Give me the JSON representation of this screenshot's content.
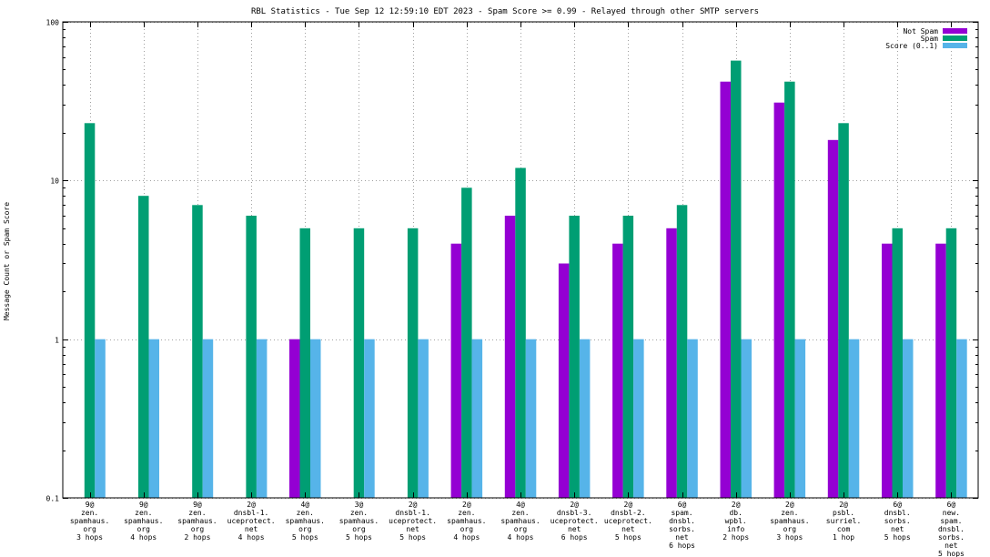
{
  "chart_data": {
    "type": "bar",
    "title": "RBL Statistics - Tue Sep 12 12:59:10 EDT 2023 - Spam Score >= 0.99 - Relayed through other SMTP servers",
    "xlabel": "",
    "ylabel": "Message Count or Spam Score",
    "y_scale": "log",
    "ylim": [
      0.1,
      100
    ],
    "y_ticks": [
      "100",
      "10",
      "1",
      "0.1"
    ],
    "y_tick_values": [
      100,
      10,
      1,
      0.1
    ],
    "grid": true,
    "legend_position": "top-right",
    "categories": [
      [
        "9@",
        "zen.",
        "spamhaus.",
        "org",
        "3 hops"
      ],
      [
        "9@",
        "zen.",
        "spamhaus.",
        "org",
        "4 hops"
      ],
      [
        "9@",
        "zen.",
        "spamhaus.",
        "org",
        "2 hops"
      ],
      [
        "2@",
        "dnsbl-1.",
        "uceprotect.",
        "net",
        "4 hops"
      ],
      [
        "4@",
        "zen.",
        "spamhaus.",
        "org",
        "5 hops"
      ],
      [
        "3@",
        "zen.",
        "spamhaus.",
        "org",
        "5 hops"
      ],
      [
        "2@",
        "dnsbl-1.",
        "uceprotect.",
        "net",
        "5 hops"
      ],
      [
        "2@",
        "zen.",
        "spamhaus.",
        "org",
        "4 hops"
      ],
      [
        "4@",
        "zen.",
        "spamhaus.",
        "org",
        "4 hops"
      ],
      [
        "2@",
        "dnsbl-3.",
        "uceprotect.",
        "net",
        "6 hops"
      ],
      [
        "2@",
        "dnsbl-2.",
        "uceprotect.",
        "net",
        "5 hops"
      ],
      [
        "6@",
        "spam.",
        "dnsbl.",
        "sorbs.",
        "net",
        "6 hops"
      ],
      [
        "2@",
        "db.",
        "wpbl.",
        "info",
        "2 hops"
      ],
      [
        "2@",
        "zen.",
        "spamhaus.",
        "org",
        "3 hops"
      ],
      [
        "2@",
        "psbl.",
        "surriel.",
        "com",
        "1 hop"
      ],
      [
        "6@",
        "dnsbl.",
        "sorbs.",
        "net",
        "5 hops"
      ],
      [
        "6@",
        "new.",
        "spam.",
        "dnsbl.",
        "sorbs.",
        "net",
        "5 hops"
      ]
    ],
    "series": [
      {
        "name": "Not Spam",
        "color": "#9400d3",
        "values": [
          0,
          0,
          0,
          0,
          1,
          0,
          0,
          4,
          6,
          3,
          4,
          5,
          42,
          31,
          18,
          4,
          4
        ]
      },
      {
        "name": "Spam",
        "color": "#009e73",
        "values": [
          23,
          8,
          7,
          6,
          5,
          5,
          5,
          9,
          12,
          6,
          6,
          7,
          57,
          42,
          23,
          5,
          5
        ]
      },
      {
        "name": "Score (0..1)",
        "color": "#56b4e9",
        "values": [
          1,
          1,
          1,
          1,
          1,
          1,
          1,
          1,
          1,
          1,
          1,
          1,
          1,
          1,
          1,
          1,
          1
        ]
      }
    ]
  }
}
